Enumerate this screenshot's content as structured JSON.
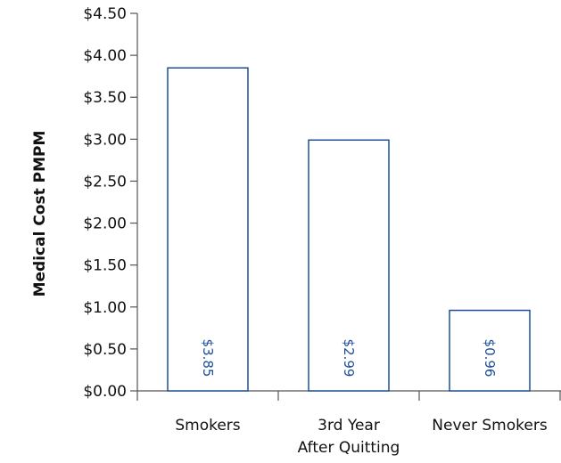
{
  "chart_data": {
    "type": "bar",
    "title": "",
    "xlabel": "",
    "ylabel": "Medical Cost PMPM",
    "categories": [
      [
        "Smokers"
      ],
      [
        "3rd Year",
        "After Quitting"
      ],
      [
        "Never Smokers"
      ]
    ],
    "values": [
      3.85,
      2.99,
      0.96
    ],
    "value_labels": [
      "$3.85",
      "$2.99",
      "$0.96"
    ],
    "y_ticks": [
      "$0.00",
      "$0.50",
      "$1.00",
      "$1.50",
      "$2.00",
      "$2.50",
      "$3.00",
      "$3.50",
      "$4.00",
      "$4.50"
    ],
    "ylim": [
      0,
      4.5
    ],
    "grid": false,
    "legend": "none",
    "colors": {
      "bar_edge": "#1f4e9a",
      "bar_fill": "#ffffff",
      "axis": "#555555",
      "text": "#111111"
    }
  }
}
